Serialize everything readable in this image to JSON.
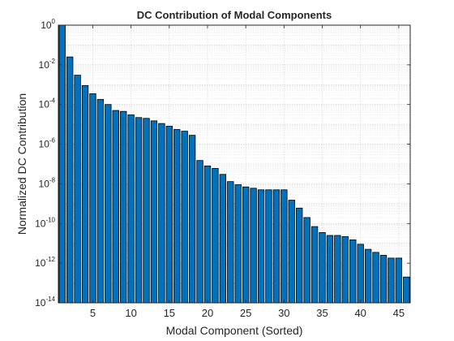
{
  "chart_data": {
    "type": "bar",
    "title": "DC Contribution of Modal Components",
    "xlabel": "Modal Component (Sorted)",
    "ylabel": "Normalized DC Contribution",
    "yscale": "log",
    "xlim": [
      0.5,
      46.5
    ],
    "ylim_exponent": [
      -14,
      0
    ],
    "xticks": [
      5,
      10,
      15,
      20,
      25,
      30,
      35,
      40,
      45
    ],
    "yticks": [
      {
        "base": "10",
        "exp": "0"
      },
      {
        "base": "10",
        "exp": "-2"
      },
      {
        "base": "10",
        "exp": "-4"
      },
      {
        "base": "10",
        "exp": "-6"
      },
      {
        "base": "10",
        "exp": "-8"
      },
      {
        "base": "10",
        "exp": "-10"
      },
      {
        "base": "10",
        "exp": "-12"
      },
      {
        "base": "10",
        "exp": "-14"
      }
    ],
    "grid": true,
    "minor_grid": true,
    "bar_color": "#0072BD",
    "x": [
      1,
      2,
      3,
      4,
      5,
      6,
      7,
      8,
      9,
      10,
      11,
      12,
      13,
      14,
      15,
      16,
      17,
      18,
      19,
      20,
      21,
      22,
      23,
      24,
      25,
      26,
      27,
      28,
      29,
      30,
      31,
      32,
      33,
      34,
      35,
      36,
      37,
      38,
      39,
      40,
      41,
      42,
      43,
      44,
      45,
      46
    ],
    "values": [
      1.0,
      0.025,
      0.003,
      0.0009,
      0.00035,
      0.00018,
      0.0001,
      5e-05,
      4.5e-05,
      3e-05,
      2.2e-05,
      2e-05,
      1.5e-05,
      1.1e-05,
      8e-06,
      5.5e-06,
      4.5e-06,
      2.8e-06,
      1.5e-07,
      8e-08,
      6e-08,
      3e-08,
      1.3e-08,
      9e-09,
      7e-09,
      6e-09,
      5e-09,
      5e-09,
      5e-09,
      5e-09,
      1.5e-09,
      6e-10,
      2e-10,
      7e-11,
      3.5e-11,
      2.5e-11,
      2.5e-11,
      2.2e-11,
      1.5e-11,
      9e-12,
      5e-12,
      3.5e-12,
      2.5e-12,
      1.8e-12,
      1.8e-12,
      2e-13
    ]
  }
}
